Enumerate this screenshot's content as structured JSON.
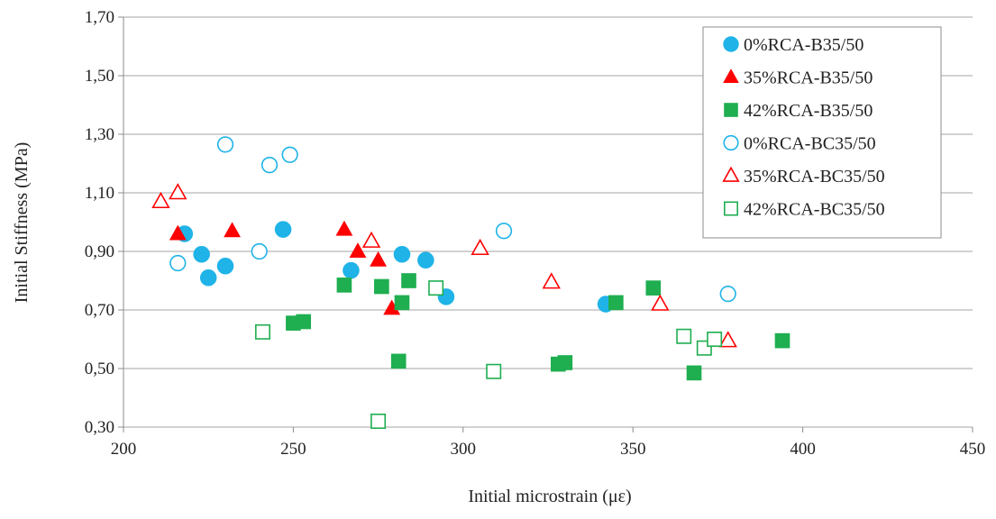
{
  "chart_data": {
    "type": "scatter",
    "title": "",
    "xlabel": "Initial microstrain (με)",
    "ylabel": "Initial Stiffness (MPa)",
    "xlim": [
      200,
      450
    ],
    "ylim": [
      0.3,
      1.7
    ],
    "xticks": [
      {
        "value": 200,
        "label": "200"
      },
      {
        "value": 250,
        "label": "250"
      },
      {
        "value": 300,
        "label": "300"
      },
      {
        "value": 350,
        "label": "350"
      },
      {
        "value": 400,
        "label": "400"
      },
      {
        "value": 450,
        "label": "450"
      }
    ],
    "yticks": [
      {
        "value": 0.3,
        "label": "0,30"
      },
      {
        "value": 0.5,
        "label": "0,50"
      },
      {
        "value": 0.7,
        "label": "0,70"
      },
      {
        "value": 0.9,
        "label": "0,90"
      },
      {
        "value": 1.1,
        "label": "1,10"
      },
      {
        "value": 1.3,
        "label": "1,30"
      },
      {
        "value": 1.5,
        "label": "1,50"
      },
      {
        "value": 1.7,
        "label": "1,70"
      }
    ],
    "grid": "horizontal",
    "legend_position": "top-right",
    "series": [
      {
        "name": "0%RCA-B35/50",
        "marker": "circle",
        "filled": true,
        "color": "#1fb3e8",
        "x": [
          218,
          223,
          225,
          230,
          247,
          267,
          282,
          289,
          295,
          342
        ],
        "y": [
          0.96,
          0.89,
          0.81,
          0.85,
          0.975,
          0.835,
          0.89,
          0.87,
          0.745,
          0.72
        ]
      },
      {
        "name": "35%RCA-B35/50",
        "marker": "triangle",
        "filled": true,
        "color": "#ff0000",
        "x": [
          216,
          232,
          265,
          269,
          275,
          279
        ],
        "y": [
          0.96,
          0.97,
          0.975,
          0.9,
          0.87,
          0.705
        ]
      },
      {
        "name": "42%RCA-B35/50",
        "marker": "square",
        "filled": true,
        "color": "#1fae50",
        "x": [
          250,
          253,
          265,
          276,
          281,
          282,
          284,
          328,
          330,
          345,
          356,
          368,
          394
        ],
        "y": [
          0.655,
          0.66,
          0.785,
          0.78,
          0.525,
          0.725,
          0.8,
          0.515,
          0.52,
          0.725,
          0.775,
          0.485,
          0.595
        ]
      },
      {
        "name": "0%RCA-BC35/50",
        "marker": "circle",
        "filled": false,
        "color": "#1fb3e8",
        "x": [
          216,
          230,
          240,
          243,
          249,
          312,
          378
        ],
        "y": [
          0.86,
          1.265,
          0.9,
          1.195,
          1.23,
          0.97,
          0.755
        ]
      },
      {
        "name": "35%RCA-BC35/50",
        "marker": "triangle",
        "filled": false,
        "color": "#ff0000",
        "x": [
          211,
          216,
          273,
          305,
          326,
          358,
          378
        ],
        "y": [
          1.07,
          1.1,
          0.935,
          0.91,
          0.795,
          0.72,
          0.595
        ]
      },
      {
        "name": "42%RCA-BC35/50",
        "marker": "square",
        "filled": false,
        "color": "#1fae50",
        "x": [
          241,
          275,
          292,
          309,
          365,
          371,
          374
        ],
        "y": [
          0.625,
          0.32,
          0.775,
          0.49,
          0.61,
          0.57,
          0.6
        ]
      }
    ]
  }
}
